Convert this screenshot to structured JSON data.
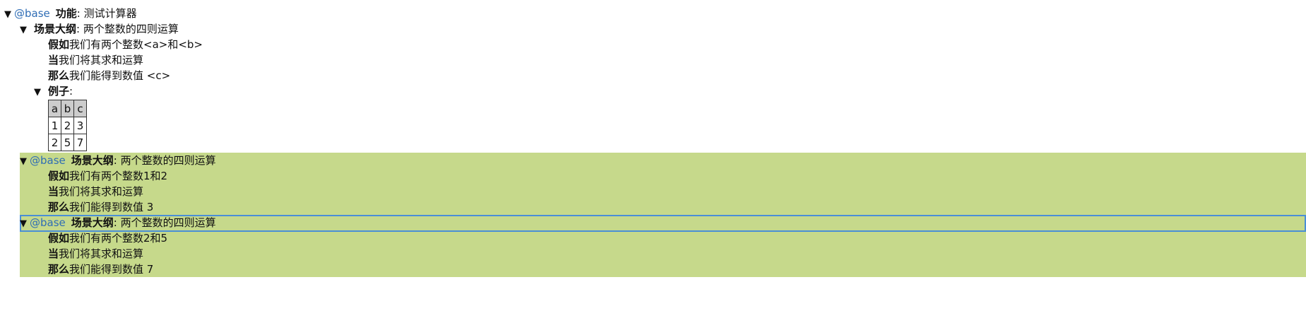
{
  "feature": {
    "tag": "@base",
    "keyword": "功能",
    "title": "测试计算器"
  },
  "outline": {
    "keyword": "场景大纲",
    "title": "两个整数的四则运算",
    "steps": [
      {
        "keyword": "假如",
        "text": "我们有两个整数<a>和<b>"
      },
      {
        "keyword": "当",
        "text": "我们将其求和运算"
      },
      {
        "keyword": "那么",
        "text": "我们能得到数值 <c>"
      }
    ],
    "examples": {
      "keyword": "例子",
      "headers": [
        "a",
        "b",
        "c"
      ],
      "rows": [
        [
          "1",
          "2",
          "3"
        ],
        [
          "2",
          "5",
          "7"
        ]
      ]
    }
  },
  "scenarios": [
    {
      "tag": "@base",
      "keyword": "场景大纲",
      "title": "两个整数的四则运算",
      "selected": false,
      "steps": [
        {
          "keyword": "假如",
          "text": "我们有两个整数1和2"
        },
        {
          "keyword": "当",
          "text": "我们将其求和运算"
        },
        {
          "keyword": "那么",
          "text": "我们能得到数值 3"
        }
      ]
    },
    {
      "tag": "@base",
      "keyword": "场景大纲",
      "title": "两个整数的四则运算",
      "selected": true,
      "steps": [
        {
          "keyword": "假如",
          "text": "我们有两个整数2和5"
        },
        {
          "keyword": "当",
          "text": "我们将其求和运算"
        },
        {
          "keyword": "那么",
          "text": "我们能得到数值 7"
        }
      ]
    }
  ],
  "colors": {
    "tag": "#2f6db5",
    "scenario_background": "#c6d98b",
    "selection_outline": "#4a8fd6",
    "table_header": "#cccccc"
  },
  "icons": {
    "expand": "triangle-down-icon"
  }
}
